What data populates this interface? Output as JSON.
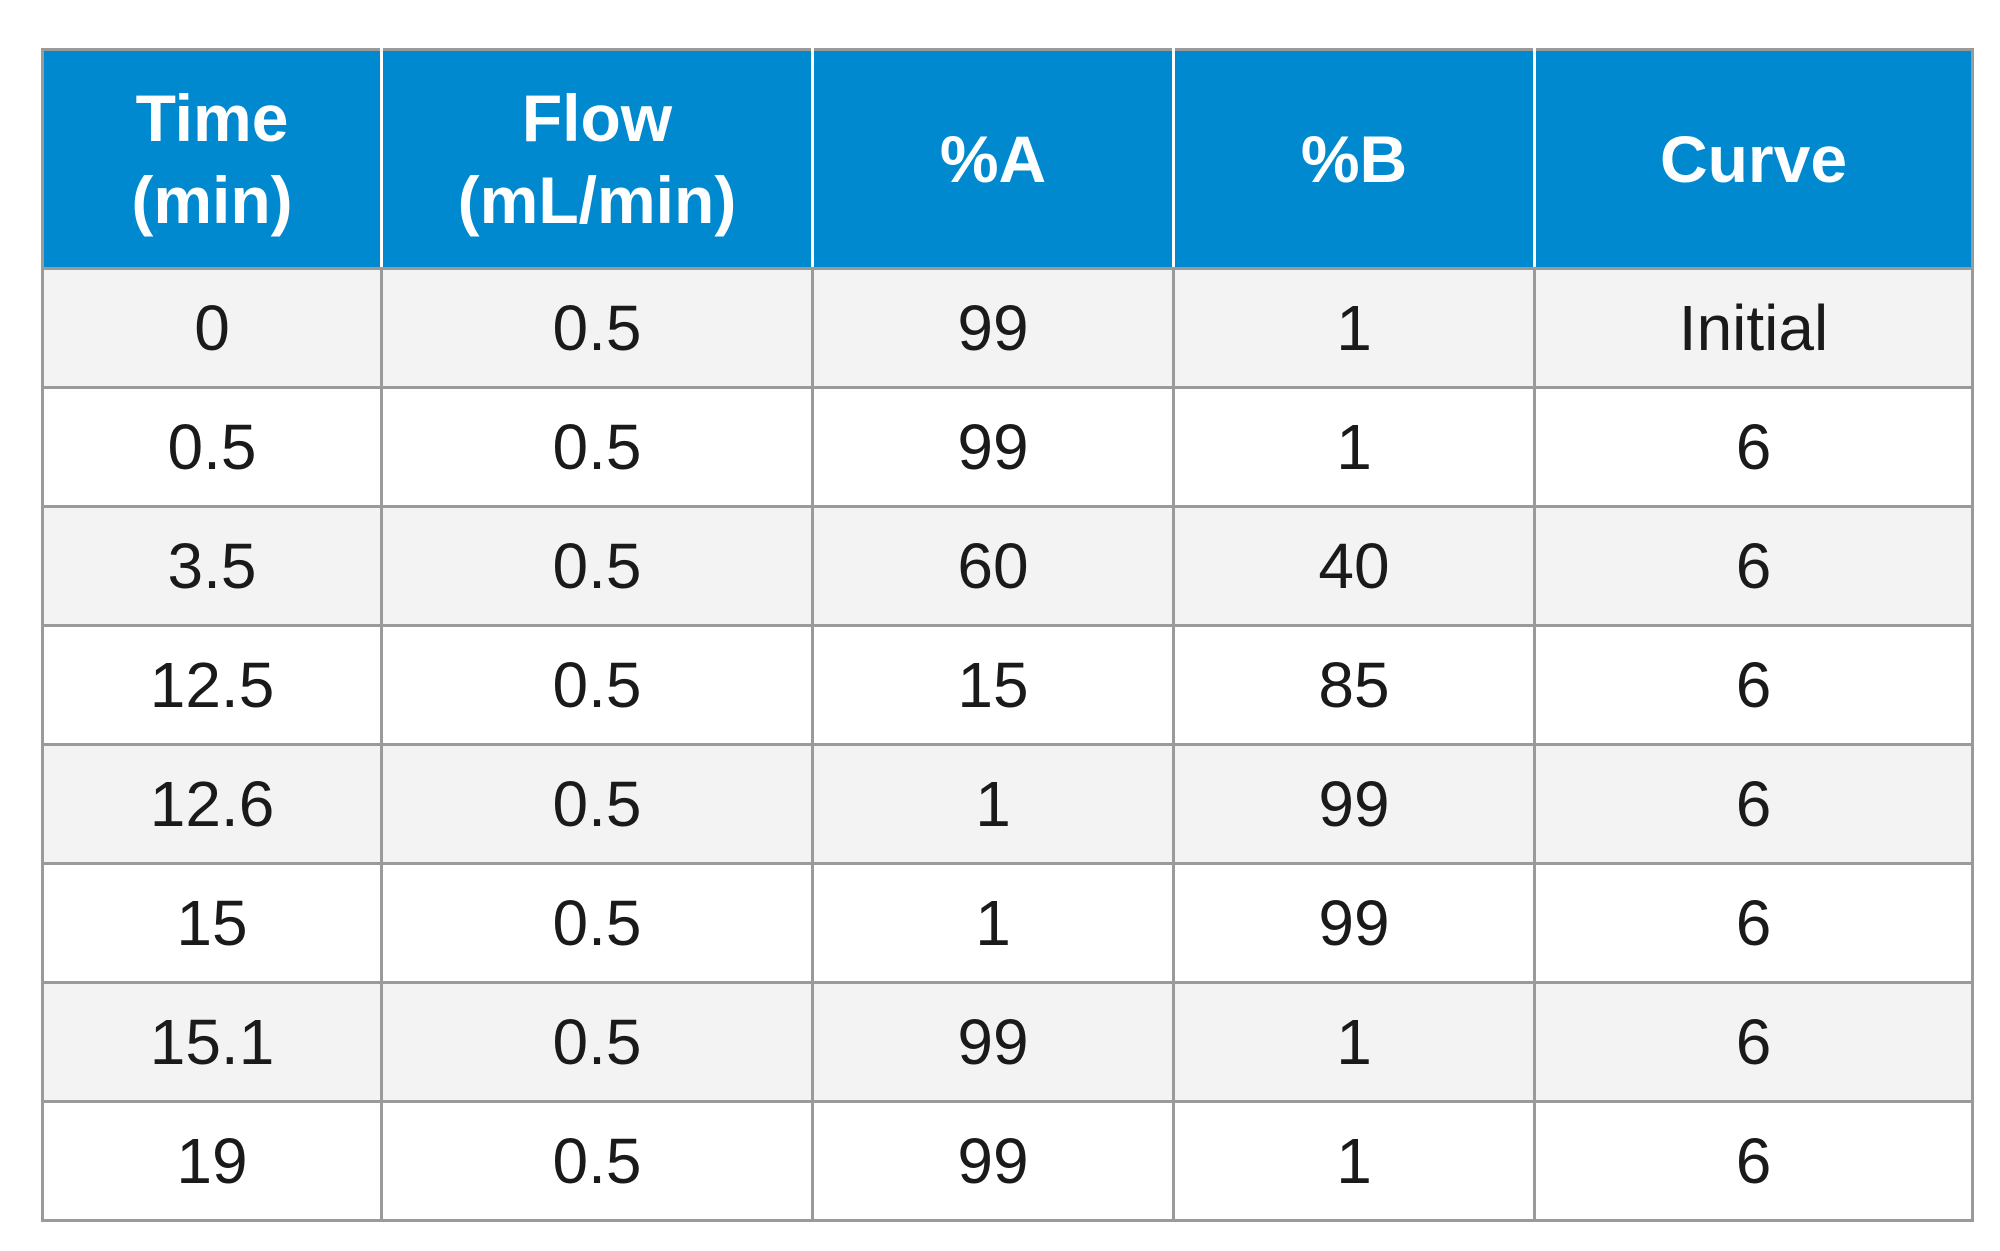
{
  "table": {
    "headers": [
      {
        "line1": "Time",
        "line2": "(min)"
      },
      {
        "line1": "Flow",
        "line2": "(mL/min)"
      },
      {
        "line1": "%A",
        "line2": ""
      },
      {
        "line1": "%B",
        "line2": ""
      },
      {
        "line1": "Curve",
        "line2": ""
      }
    ],
    "rows": [
      [
        "0",
        "0.5",
        "99",
        "1",
        "Initial"
      ],
      [
        "0.5",
        "0.5",
        "99",
        "1",
        "6"
      ],
      [
        "3.5",
        "0.5",
        "60",
        "40",
        "6"
      ],
      [
        "12.5",
        "0.5",
        "15",
        "85",
        "6"
      ],
      [
        "12.6",
        "0.5",
        "1",
        "99",
        "6"
      ],
      [
        "15",
        "0.5",
        "1",
        "99",
        "6"
      ],
      [
        "15.1",
        "0.5",
        "99",
        "1",
        "6"
      ],
      [
        "19",
        "0.5",
        "99",
        "1",
        "6"
      ]
    ]
  },
  "colors": {
    "header_bg": "#0089cf",
    "header_text": "#ffffff",
    "row_alt_bg": "#f3f3f4",
    "border": "#9a9a9a"
  }
}
